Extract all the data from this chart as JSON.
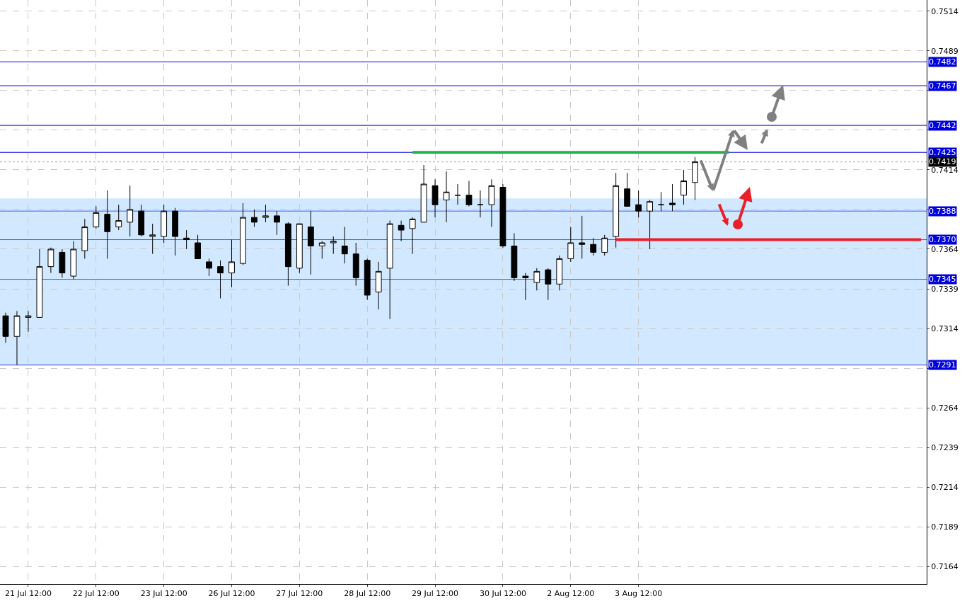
{
  "chart_data": {
    "type": "candlestick",
    "color": "#000000",
    "categories": [
      null,
      null,
      "21 Jul 12:00",
      null,
      null,
      null,
      null,
      null,
      "22 Jul 12:00",
      null,
      null,
      null,
      null,
      null,
      "23 Jul 12:00",
      null,
      null,
      null,
      null,
      null,
      "26 Jul 12:00",
      null,
      null,
      null,
      null,
      null,
      "27 Jul 12:00",
      null,
      null,
      null,
      null,
      null,
      "28 Jul 12:00",
      null,
      null,
      null,
      null,
      null,
      "29 Jul 12:00",
      null,
      null,
      null,
      null,
      null,
      "30 Jul 12:00",
      null,
      null,
      null,
      null,
      null,
      "2 Aug 12:00",
      null,
      null,
      null,
      null,
      null,
      "3 Aug 12:00",
      null,
      null,
      null,
      null,
      null,
      null,
      null,
      null,
      null,
      null,
      null,
      null,
      null,
      null,
      null,
      null,
      null,
      null,
      null,
      null,
      null,
      null,
      null,
      null,
      null
    ],
    "ohlc": [
      [
        0.7322,
        0.7324,
        0.7305,
        0.7309
      ],
      [
        0.7309,
        0.7325,
        0.7291,
        0.7322
      ],
      [
        0.7321,
        0.7325,
        0.7312,
        0.7322
      ],
      [
        0.7321,
        0.7364,
        0.7321,
        0.7353
      ],
      [
        0.7353,
        0.7365,
        0.7349,
        0.7364
      ],
      [
        0.7362,
        0.7364,
        0.7346,
        0.7349
      ],
      [
        0.7347,
        0.7369,
        0.7345,
        0.7364
      ],
      [
        0.7363,
        0.7383,
        0.7358,
        0.7378
      ],
      [
        0.7378,
        0.7391,
        0.7377,
        0.7387
      ],
      [
        0.7386,
        0.7401,
        0.7358,
        0.7375
      ],
      [
        0.7378,
        0.7392,
        0.7376,
        0.7382
      ],
      [
        0.7381,
        0.7404,
        0.7372,
        0.7389
      ],
      [
        0.7388,
        0.7392,
        0.7372,
        0.7373
      ],
      [
        0.7372,
        0.738,
        0.7361,
        0.7373
      ],
      [
        0.7372,
        0.7392,
        0.7368,
        0.7388
      ],
      [
        0.7388,
        0.739,
        0.736,
        0.7372
      ],
      [
        0.7371,
        0.7376,
        0.7364,
        0.737
      ],
      [
        0.7368,
        0.7373,
        0.7358,
        0.7358
      ],
      [
        0.7356,
        0.7358,
        0.7347,
        0.7352
      ],
      [
        0.7353,
        0.7357,
        0.7333,
        0.7349
      ],
      [
        0.7349,
        0.737,
        0.734,
        0.7356
      ],
      [
        0.7355,
        0.7393,
        0.7354,
        0.7384
      ],
      [
        0.7384,
        0.7389,
        0.7378,
        0.7381
      ],
      [
        0.7384,
        0.7392,
        0.7381,
        0.7385
      ],
      [
        0.7385,
        0.7388,
        0.7373,
        0.7381
      ],
      [
        0.738,
        0.7381,
        0.7341,
        0.7353
      ],
      [
        0.7352,
        0.738,
        0.7349,
        0.738
      ],
      [
        0.7378,
        0.7388,
        0.7348,
        0.7366
      ],
      [
        0.7366,
        0.7369,
        0.7358,
        0.7368
      ],
      [
        0.7368,
        0.7372,
        0.7361,
        0.7369
      ],
      [
        0.7366,
        0.7378,
        0.7355,
        0.7361
      ],
      [
        0.7361,
        0.7368,
        0.7341,
        0.7346
      ],
      [
        0.7357,
        0.7358,
        0.7332,
        0.7335
      ],
      [
        0.7337,
        0.7356,
        0.7326,
        0.735
      ],
      [
        0.7352,
        0.7382,
        0.732,
        0.738
      ],
      [
        0.7379,
        0.7382,
        0.7369,
        0.7376
      ],
      [
        0.7377,
        0.7384,
        0.7361,
        0.7383
      ],
      [
        0.7381,
        0.7417,
        0.7381,
        0.7405
      ],
      [
        0.7404,
        0.7408,
        0.7384,
        0.7392
      ],
      [
        0.7395,
        0.7413,
        0.7381,
        0.74
      ],
      [
        0.7398,
        0.7405,
        0.7392,
        0.7398
      ],
      [
        0.7398,
        0.7407,
        0.7391,
        0.7392
      ],
      [
        0.7392,
        0.7401,
        0.7384,
        0.7392
      ],
      [
        0.7392,
        0.7408,
        0.7378,
        0.7404
      ],
      [
        0.7403,
        0.7405,
        0.7365,
        0.7366
      ],
      [
        0.7366,
        0.7374,
        0.7344,
        0.7346
      ],
      [
        0.7347,
        0.7349,
        0.7332,
        0.7346
      ],
      [
        0.7343,
        0.7352,
        0.7338,
        0.735
      ],
      [
        0.7351,
        0.7352,
        0.7332,
        0.7342
      ],
      [
        0.7342,
        0.736,
        0.7338,
        0.7358
      ],
      [
        0.7358,
        0.7378,
        0.7356,
        0.7368
      ],
      [
        0.7368,
        0.7385,
        0.7358,
        0.7367
      ],
      [
        0.7367,
        0.7371,
        0.736,
        0.7362
      ],
      [
        0.7362,
        0.7373,
        0.736,
        0.7371
      ],
      [
        0.7372,
        0.7412,
        0.7365,
        0.7404
      ],
      [
        0.7402,
        0.7412,
        0.7391,
        0.7391
      ],
      [
        0.7392,
        0.7401,
        0.7384,
        0.7388
      ],
      [
        0.7388,
        0.7395,
        0.7364,
        0.7394
      ],
      [
        0.7392,
        0.74,
        0.7388,
        0.7392
      ],
      [
        0.7393,
        0.7405,
        0.7388,
        0.7392
      ],
      [
        0.7398,
        0.7414,
        0.7392,
        0.7407
      ],
      [
        0.7406,
        0.7422,
        0.7395,
        0.7419
      ],
      null,
      null,
      null,
      null,
      null,
      null,
      null,
      null,
      null,
      null,
      null,
      null,
      null,
      null,
      null,
      null,
      null,
      null,
      null,
      null
    ],
    "series": [
      {
        "type": "line",
        "color": "#22b14c",
        "values": [
          null,
          null,
          null,
          null,
          null,
          null,
          null,
          null,
          null,
          null,
          null,
          null,
          null,
          null,
          null,
          null,
          null,
          null,
          null,
          null,
          null,
          null,
          null,
          null,
          null,
          null,
          null,
          null,
          null,
          null,
          null,
          null,
          null,
          null,
          null,
          null,
          0.7425,
          0.7425,
          0.7425,
          0.7425,
          0.7425,
          0.7425,
          0.7425,
          0.7425,
          0.7425,
          0.7425,
          0.7425,
          0.7425,
          0.7425,
          0.7425,
          0.7425,
          0.7425,
          0.7425,
          0.7425,
          0.7425,
          0.7425,
          0.7425,
          0.7425,
          0.7425,
          0.7425,
          0.7425,
          0.7425,
          0.7425,
          0.7425,
          0.7425,
          null,
          null,
          null,
          null,
          null,
          null,
          null,
          null,
          null,
          null,
          null,
          null,
          null,
          null,
          null,
          null,
          null
        ]
      },
      {
        "type": "line",
        "color": "#e8202a",
        "values": [
          null,
          null,
          null,
          null,
          null,
          null,
          null,
          null,
          null,
          null,
          null,
          null,
          null,
          null,
          null,
          null,
          null,
          null,
          null,
          null,
          null,
          null,
          null,
          null,
          null,
          null,
          null,
          null,
          null,
          null,
          null,
          null,
          null,
          null,
          null,
          null,
          null,
          null,
          null,
          null,
          null,
          null,
          null,
          null,
          null,
          null,
          null,
          null,
          null,
          null,
          null,
          null,
          null,
          null,
          0.737,
          0.737,
          0.737,
          0.737,
          0.737,
          0.737,
          0.737,
          0.737,
          0.737,
          0.737,
          0.737,
          0.737,
          0.737,
          0.737,
          0.737,
          0.737,
          0.737,
          0.737,
          0.737,
          0.737,
          0.737,
          0.737,
          0.737,
          0.737,
          0.737,
          0.737,
          0.737,
          0.737
        ]
      }
    ],
    "ylim": [
      0.7153,
      0.7521
    ],
    "yticks": [
      0.7514,
      0.7489,
      {
        "value": 0.7464,
        "label": null
      },
      {
        "value": 0.7439,
        "label": null
      },
      0.7414,
      {
        "value": 0.7389,
        "label": null
      },
      0.7364,
      0.7339,
      0.7314,
      {
        "value": 0.7289,
        "label": null
      },
      0.7264,
      0.7239,
      0.7214,
      0.7189,
      0.7164
    ],
    "ref_lines": [
      {
        "axis": "y",
        "value": 0.7482,
        "label": "0.7482",
        "color": "#0000dd"
      },
      {
        "axis": "y",
        "value": 0.7467,
        "label": "0.7467",
        "color": "#0000dd"
      },
      {
        "axis": "y",
        "value": 0.7442,
        "label": "0.7442",
        "color": "#0000dd"
      },
      {
        "axis": "y",
        "value": 0.7425,
        "label": "0.7425",
        "color": "#0000dd"
      },
      {
        "axis": "y",
        "value": 0.7419,
        "label": "0.7419",
        "color": "#000000",
        "line_style": "dotted"
      },
      {
        "axis": "y",
        "value": 0.7388,
        "label": "0.7388",
        "color": "#0000dd"
      },
      {
        "axis": "y",
        "value": 0.737,
        "label": "0.7370",
        "color": "#0000dd"
      },
      {
        "axis": "y",
        "value": 0.7345,
        "label": "0.7345",
        "color": "#0000dd"
      },
      {
        "axis": "y",
        "value": 0.7291,
        "label": "0.7291",
        "color": "#0000dd"
      }
    ],
    "bands": [
      {
        "axis": "y",
        "from": 0.7291,
        "to": 0.7396,
        "color": "#99ccff"
      }
    ],
    "grid": true
  }
}
